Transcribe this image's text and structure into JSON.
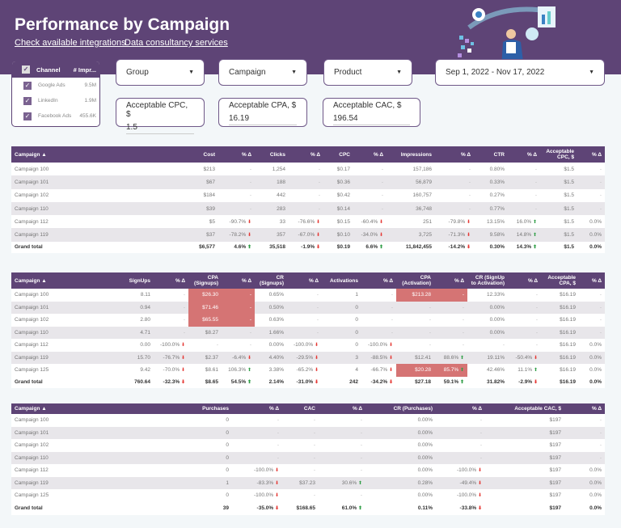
{
  "header": {
    "title": "Performance by Campaign",
    "links": [
      "Check available integrations",
      "Data consultancy services"
    ]
  },
  "colors": {
    "brand": "#5e4476",
    "highlight": "#d57474",
    "down": "#e53935",
    "up": "#2e9d45"
  },
  "channel_filter": {
    "headers": [
      "Channel",
      "# Impr..."
    ],
    "items": [
      {
        "label": "Google Ads",
        "value": "9.5M",
        "checked": true
      },
      {
        "label": "LinkedIn",
        "value": "1.9M",
        "checked": true
      },
      {
        "label": "Facebook Ads",
        "value": "455.6K",
        "checked": true
      }
    ]
  },
  "dropdowns": {
    "group": "Group",
    "campaign": "Campaign",
    "product": "Product",
    "date": "Sep 1, 2022 - Nov 17, 2022"
  },
  "inputs": {
    "cpc": {
      "label": "Acceptable CPC, $",
      "value": "1.5"
    },
    "cpa": {
      "label": "Acceptable CPA, $",
      "value": "16.19"
    },
    "cac": {
      "label": "Acceptable CAC, $",
      "value": "196.54"
    }
  },
  "tables": [
    {
      "columns": [
        "Campaign ▲",
        "Cost",
        "% Δ",
        "Clicks",
        "% Δ",
        "CPC",
        "% Δ",
        "Impressions",
        "% Δ",
        "CTR",
        "% Δ",
        "Acceptable CPC, $",
        "% Δ"
      ],
      "delta_cols": [
        2,
        4,
        6,
        8,
        10,
        12
      ],
      "rows": [
        [
          "Campaign 100",
          "$213",
          "-",
          "1,254",
          "-",
          "$0.17",
          "-",
          "157,186",
          "-",
          "0.80%",
          "-",
          "$1.5",
          "-"
        ],
        [
          "Campaign 101",
          "$67",
          "-",
          "188",
          "-",
          "$0.36",
          "-",
          "56,879",
          "-",
          "0.33%",
          "-",
          "$1.5",
          "-"
        ],
        [
          "Campaign 102",
          "$184",
          "-",
          "442",
          "-",
          "$0.42",
          "-",
          "160,757",
          "-",
          "0.27%",
          "-",
          "$1.5",
          "-"
        ],
        [
          "Campaign 110",
          "$39",
          "-",
          "283",
          "-",
          "$0.14",
          "-",
          "36,748",
          "-",
          "0.77%",
          "-",
          "$1.5",
          "-"
        ],
        [
          "Campaign 112",
          "$5",
          "-90.7%",
          "33",
          "-76.6%",
          "$0.15",
          "-60.4%",
          "251",
          "-79.8%",
          "13.15%",
          "16.0%",
          "$1.5",
          "0.0%"
        ],
        [
          "Campaign 119",
          "$37",
          "-78.2%",
          "357",
          "-67.0%",
          "$0.10",
          "-34.0%",
          "3,725",
          "-71.3%",
          "9.58%",
          "14.8%",
          "$1.5",
          "0.0%"
        ]
      ],
      "total": [
        "Grand total",
        "$6,577",
        "4.6%",
        "35,518",
        "-1.9%",
        "$0.19",
        "6.6%",
        "11,842,455",
        "-14.2%",
        "0.30%",
        "14.3%",
        "$1.5",
        "0.0%"
      ],
      "highlights": []
    },
    {
      "columns": [
        "Campaign ▲",
        "SignUps",
        "% Δ",
        "CPA (Signups)",
        "% Δ",
        "CR (Signups)",
        "% Δ",
        "Activations",
        "% Δ",
        "CPA (Activation)",
        "% Δ",
        "CR (SignUp to Activation)",
        "% Δ",
        "Acceptable CPA, $",
        "% Δ"
      ],
      "delta_cols": [
        2,
        4,
        6,
        8,
        10,
        12,
        14
      ],
      "rows": [
        [
          "Campaign 100",
          "8.11",
          "-",
          "$26.30",
          "-",
          "0.65%",
          "-",
          "1",
          "-",
          "$213.28",
          "-",
          "12.33%",
          "-",
          "$16.19",
          "-"
        ],
        [
          "Campaign 101",
          "0.94",
          "-",
          "$71.46",
          "-",
          "0.50%",
          "-",
          "0",
          "-",
          "-",
          "-",
          "0.00%",
          "-",
          "$16.19",
          "-"
        ],
        [
          "Campaign 102",
          "2.80",
          "-",
          "$65.55",
          "-",
          "0.63%",
          "-",
          "0",
          "-",
          "-",
          "-",
          "0.00%",
          "-",
          "$16.19",
          "-"
        ],
        [
          "Campaign 110",
          "4.71",
          "-",
          "$8.27",
          "-",
          "1.66%",
          "-",
          "0",
          "-",
          "-",
          "-",
          "0.00%",
          "-",
          "$16.19",
          "-"
        ],
        [
          "Campaign 112",
          "0.00",
          "-100.0%",
          "-",
          "-",
          "0.00%",
          "-100.0%",
          "0",
          "-100.0%",
          "-",
          "-",
          "-",
          "-",
          "$16.19",
          "0.0%"
        ],
        [
          "Campaign 119",
          "15.70",
          "-76.7%",
          "$2.37",
          "-6.4%",
          "4.40%",
          "-29.5%",
          "3",
          "-88.5%",
          "$12.41",
          "88.6%",
          "19.11%",
          "-50.4%",
          "$16.19",
          "0.0%"
        ],
        [
          "Campaign 125",
          "9.42",
          "-70.0%",
          "$8.61",
          "106.3%",
          "3.38%",
          "-65.2%",
          "4",
          "-66.7%",
          "$20.28",
          "85.7%",
          "42.46%",
          "11.1%",
          "$16.19",
          "0.0%"
        ]
      ],
      "total": [
        "Grand total",
        "760.64",
        "-32.3%",
        "$8.65",
        "54.5%",
        "2.14%",
        "-31.0%",
        "242",
        "-34.2%",
        "$27.18",
        "59.1%",
        "31.82%",
        "-2.9%",
        "$16.19",
        "0.0%"
      ],
      "highlights": [
        [
          0,
          3
        ],
        [
          0,
          4
        ],
        [
          1,
          3
        ],
        [
          1,
          4
        ],
        [
          2,
          3
        ],
        [
          2,
          4
        ],
        [
          0,
          9
        ],
        [
          0,
          10
        ],
        [
          6,
          9
        ],
        [
          6,
          10
        ]
      ]
    },
    {
      "columns": [
        "Campaign ▲",
        "Purchases",
        "% Δ",
        "CAC",
        "% Δ",
        "CR (Purchases)",
        "% Δ",
        "Acceptable CAC, $",
        "% Δ"
      ],
      "delta_cols": [
        2,
        4,
        6,
        8
      ],
      "rows": [
        [
          "Campaign 100",
          "0",
          "-",
          "-",
          "-",
          "0.00%",
          "-",
          "$197",
          "-"
        ],
        [
          "Campaign 101",
          "0",
          "-",
          "-",
          "-",
          "0.00%",
          "-",
          "$197",
          "-"
        ],
        [
          "Campaign 102",
          "0",
          "-",
          "-",
          "-",
          "0.00%",
          "-",
          "$197",
          "-"
        ],
        [
          "Campaign 110",
          "0",
          "-",
          "-",
          "-",
          "0.00%",
          "-",
          "$197",
          "-"
        ],
        [
          "Campaign 112",
          "0",
          "-100.0%",
          "-",
          "-",
          "0.00%",
          "-100.0%",
          "$197",
          "0.0%"
        ],
        [
          "Campaign 119",
          "1",
          "-83.3%",
          "$37.23",
          "30.6%",
          "0.28%",
          "-49.4%",
          "$197",
          "0.0%"
        ],
        [
          "Campaign 125",
          "0",
          "-100.0%",
          "-",
          "-",
          "0.00%",
          "-100.0%",
          "$197",
          "0.0%"
        ]
      ],
      "total": [
        "Grand total",
        "39",
        "-35.0%",
        "$168.65",
        "61.0%",
        "0.11%",
        "-33.8%",
        "$197",
        "0.0%"
      ],
      "highlights": []
    }
  ]
}
